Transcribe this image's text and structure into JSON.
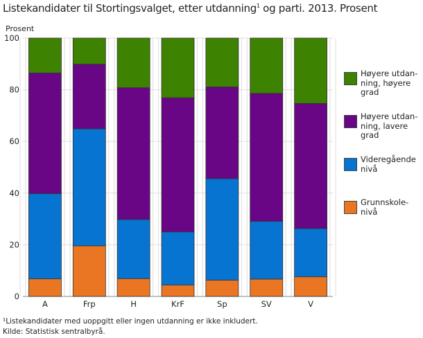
{
  "title": "Listekandidater til Stortingsvalget, etter utdanning",
  "title_sup": "1",
  "title_rest": " og parti. 2013. Prosent",
  "footnote": "¹Listekandidater med uoppgitt eller ingen utdanning er ikke inkludert.",
  "source": "Kilde: Statistisk sentralbyrå.",
  "chart_data": {
    "type": "stacked-bar",
    "ylabel": "Prosent",
    "ylim": [
      0,
      100
    ],
    "yticks": [
      0,
      20,
      40,
      60,
      80,
      100
    ],
    "grid": true,
    "legend_placement": "right",
    "categories": [
      "A",
      "Frp",
      "H",
      "KrF",
      "Sp",
      "SV",
      "V"
    ],
    "series": [
      {
        "name": "Grunnskole-nivå",
        "color": "#ea7624",
        "values": [
          6.8,
          19.6,
          6.9,
          4.4,
          6.3,
          6.7,
          7.6
        ]
      },
      {
        "name": "Videregående nivå",
        "color": "#0674d0",
        "values": [
          33.0,
          45.3,
          22.9,
          20.6,
          39.3,
          22.4,
          18.7
        ]
      },
      {
        "name": "Høyere utdan-ning, lavere grad",
        "color": "#690686",
        "values": [
          46.7,
          25.0,
          51.0,
          51.9,
          35.5,
          49.5,
          48.4
        ]
      },
      {
        "name": "Høyere utdan-ning, høyere grad",
        "color": "#3d8200",
        "values": [
          13.5,
          10.1,
          19.2,
          23.1,
          18.9,
          21.4,
          25.3
        ]
      }
    ]
  }
}
